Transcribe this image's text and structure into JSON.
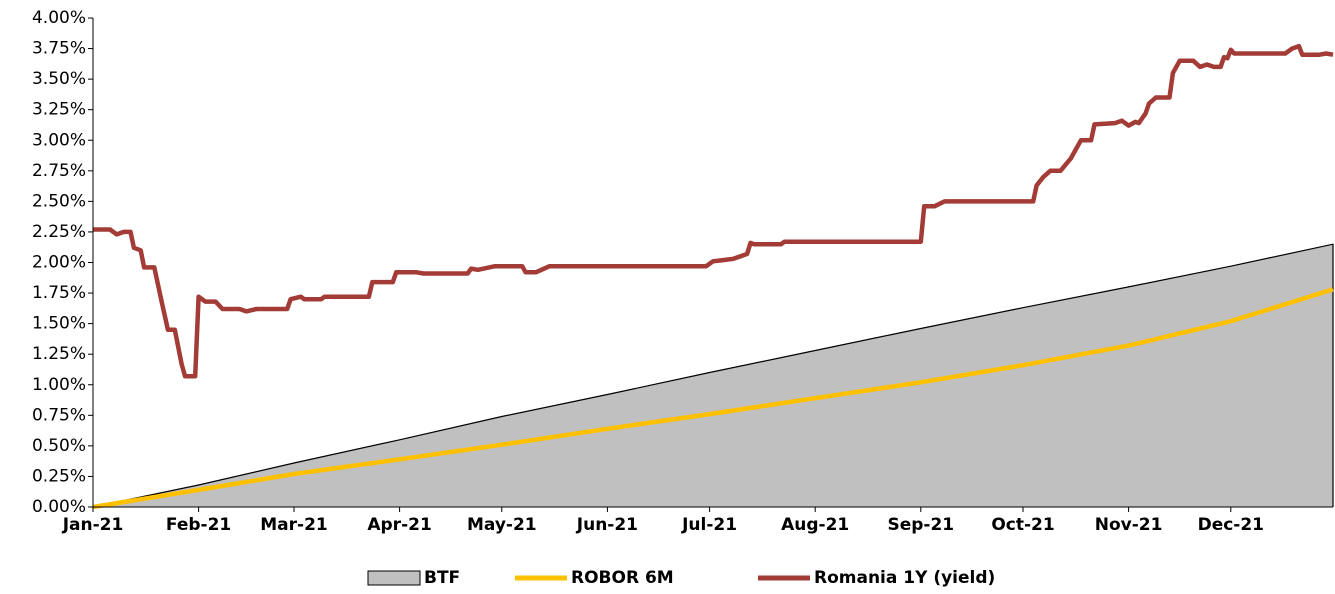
{
  "chart_data": {
    "type": "line",
    "xlim": [
      0,
      364
    ],
    "xticks": [
      {
        "value": 0,
        "label": "Jan-21"
      },
      {
        "value": 31,
        "label": "Feb-21"
      },
      {
        "value": 59,
        "label": "Mar-21"
      },
      {
        "value": 90,
        "label": "Apr-21"
      },
      {
        "value": 120,
        "label": "May-21"
      },
      {
        "value": 151,
        "label": "Jun-21"
      },
      {
        "value": 181,
        "label": "Jul-21"
      },
      {
        "value": 212,
        "label": "Aug-21"
      },
      {
        "value": 243,
        "label": "Sep-21"
      },
      {
        "value": 273,
        "label": "Oct-21"
      },
      {
        "value": 304,
        "label": "Nov-21"
      },
      {
        "value": 334,
        "label": "Dec-21"
      }
    ],
    "ylim": [
      0,
      4
    ],
    "yticks": [
      {
        "value": 0,
        "label": "0.00%"
      },
      {
        "value": 0.25,
        "label": "0.25%"
      },
      {
        "value": 0.5,
        "label": "0.50%"
      },
      {
        "value": 0.75,
        "label": "0.75%"
      },
      {
        "value": 1,
        "label": "1.00%"
      },
      {
        "value": 1.25,
        "label": "1.25%"
      },
      {
        "value": 1.5,
        "label": "1.50%"
      },
      {
        "value": 1.75,
        "label": "1.75%"
      },
      {
        "value": 2,
        "label": "2.00%"
      },
      {
        "value": 2.25,
        "label": "2.25%"
      },
      {
        "value": 2.5,
        "label": "2.50%"
      },
      {
        "value": 2.75,
        "label": "2.75%"
      },
      {
        "value": 3,
        "label": "3.00%"
      },
      {
        "value": 3.25,
        "label": "3.25%"
      },
      {
        "value": 3.5,
        "label": "3.50%"
      },
      {
        "value": 3.75,
        "label": "3.75%"
      },
      {
        "value": 4,
        "label": "4.00%"
      }
    ],
    "legend": "bottom",
    "series": [
      {
        "name": "BTF",
        "kind": "area",
        "color": "#c0c0c0",
        "x": [
          0,
          31,
          59,
          90,
          120,
          151,
          181,
          212,
          243,
          273,
          304,
          334,
          364
        ],
        "values": [
          0,
          0.18,
          0.36,
          0.55,
          0.74,
          0.92,
          1.1,
          1.28,
          1.46,
          1.63,
          1.8,
          1.97,
          2.15
        ]
      },
      {
        "name": "ROBOR 6M",
        "kind": "line",
        "color": "#ffc000",
        "x": [
          0,
          31,
          59,
          90,
          120,
          151,
          181,
          212,
          243,
          273,
          304,
          334,
          364
        ],
        "values": [
          0,
          0.14,
          0.27,
          0.39,
          0.51,
          0.64,
          0.76,
          0.89,
          1.02,
          1.16,
          1.32,
          1.52,
          1.78
        ]
      },
      {
        "name": "Romania 1Y (yield)",
        "kind": "line",
        "color": "#a33b36",
        "x": [
          0,
          5,
          7,
          9,
          11,
          12,
          14,
          15,
          18,
          20,
          22,
          24,
          26,
          27,
          30,
          31,
          32,
          33,
          36,
          38,
          43,
          45,
          48,
          57,
          58,
          61,
          62,
          67,
          68,
          81,
          82,
          88,
          89,
          95,
          97,
          110,
          111,
          113,
          118,
          126,
          127,
          130,
          134,
          180,
          182,
          185,
          188,
          190,
          192,
          193,
          194,
          202,
          203,
          243,
          244,
          247,
          250,
          276,
          277,
          279,
          281,
          284,
          287,
          290,
          293,
          294,
          300,
          302,
          304,
          306,
          307,
          309,
          310,
          312,
          316,
          317,
          319,
          323,
          325,
          327,
          329,
          331,
          332,
          333,
          334,
          335,
          350,
          352,
          354,
          355,
          360,
          362,
          364
        ],
        "values": [
          2.27,
          2.27,
          2.23,
          2.25,
          2.25,
          2.12,
          2.1,
          1.96,
          1.96,
          1.7,
          1.45,
          1.45,
          1.17,
          1.07,
          1.07,
          1.72,
          1.7,
          1.68,
          1.68,
          1.62,
          1.62,
          1.6,
          1.62,
          1.62,
          1.7,
          1.72,
          1.7,
          1.7,
          1.72,
          1.72,
          1.84,
          1.84,
          1.92,
          1.92,
          1.91,
          1.91,
          1.95,
          1.94,
          1.97,
          1.97,
          1.92,
          1.92,
          1.97,
          1.97,
          2.01,
          2.02,
          2.03,
          2.05,
          2.07,
          2.16,
          2.15,
          2.15,
          2.17,
          2.17,
          2.46,
          2.46,
          2.5,
          2.5,
          2.63,
          2.7,
          2.75,
          2.75,
          2.85,
          3,
          3,
          3.13,
          3.14,
          3.16,
          3.12,
          3.15,
          3.14,
          3.22,
          3.3,
          3.35,
          3.35,
          3.55,
          3.65,
          3.65,
          3.6,
          3.62,
          3.6,
          3.6,
          3.68,
          3.67,
          3.74,
          3.71,
          3.71,
          3.75,
          3.77,
          3.7,
          3.7,
          3.71,
          3.7
        ]
      }
    ]
  }
}
